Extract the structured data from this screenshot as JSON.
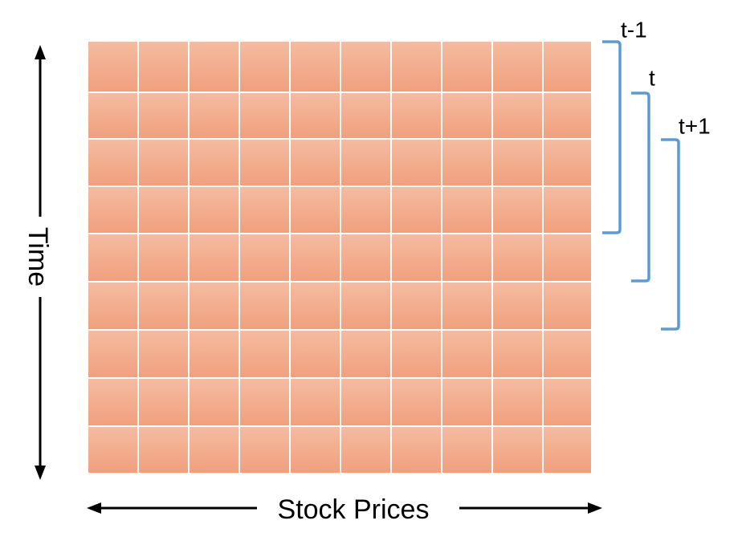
{
  "grid": {
    "rows": 9,
    "cols": 10,
    "cell_color_top": "#f5bba0",
    "cell_color_bottom": "#f0a07e",
    "gap_color": "#ffffff"
  },
  "axes": {
    "time_label": "Time",
    "stock_label": "Stock Prices"
  },
  "windows": [
    {
      "label": "t-1",
      "start_row": 1,
      "end_row": 4
    },
    {
      "label": "t",
      "start_row": 2,
      "end_row": 5
    },
    {
      "label": "t+1",
      "start_row": 3,
      "end_row": 6
    }
  ],
  "colors": {
    "bracket": "#5b9bd5",
    "arrow": "#000000"
  }
}
